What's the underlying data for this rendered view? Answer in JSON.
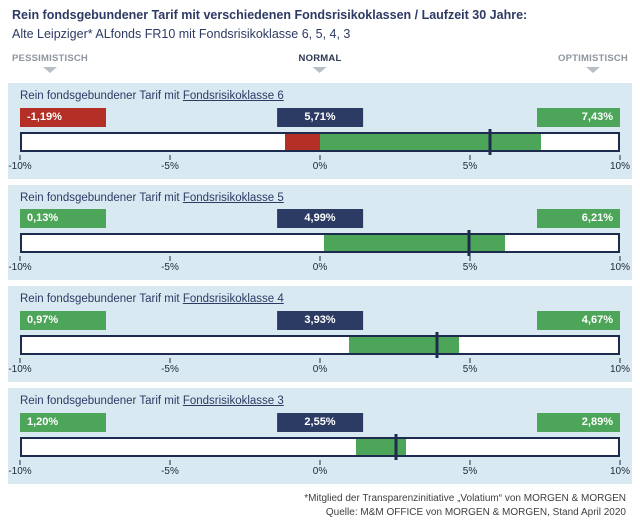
{
  "header": {
    "title": "Rein fondsgebundener Tarif mit verschiedenen Fondsrisikoklassen / Laufzeit 30 Jahre:",
    "subtitle": "Alte Leipziger* ALfonds FR10 mit Fondsrisikoklasse 6, 5, 4, 3"
  },
  "scenario_labels": {
    "pessimistic": "PESSIMISTISCH",
    "normal": "NORMAL",
    "optimistic": "OPTIMISTISCH"
  },
  "axis": {
    "min": -10,
    "max": 10,
    "ticks": [
      {
        "value": -10,
        "label": "-10%"
      },
      {
        "value": -5,
        "label": "-5%"
      },
      {
        "value": 0,
        "label": "0%"
      },
      {
        "value": 5,
        "label": "5%"
      },
      {
        "value": 10,
        "label": "10%"
      }
    ]
  },
  "colors": {
    "red": "#b42f26",
    "green": "#4ca558",
    "navy": "#2b3b64",
    "bar-border": "#1d2c4e",
    "panel-bg": "#d9e9f2",
    "title-navy": "#2d3a64",
    "scen-gray": "#8e959d",
    "scen-dark": "#2b3850",
    "tri-gray": "#b7bec5",
    "tick-color": "#222b38"
  },
  "panels": [
    {
      "title_prefix": "Rein fondsgebundener Tarif mit ",
      "risk_class": "Fondsrisikoklasse 6",
      "pessimistic": {
        "label": "-1,19%",
        "value": -1.19,
        "box_color": "red"
      },
      "normal": {
        "label": "5,71%",
        "value": 5.71,
        "box_color": "navy"
      },
      "optimistic": {
        "label": "7,43%",
        "value": 7.43,
        "box_color": "green"
      },
      "segments": [
        {
          "from": -1.19,
          "to": 0,
          "color": "red"
        },
        {
          "from": 0,
          "to": 7.43,
          "color": "green"
        }
      ]
    },
    {
      "title_prefix": "Rein fondsgebundener Tarif mit ",
      "risk_class": "Fondsrisikoklasse 5",
      "pessimistic": {
        "label": "0,13%",
        "value": 0.13,
        "box_color": "green"
      },
      "normal": {
        "label": "4,99%",
        "value": 4.99,
        "box_color": "navy"
      },
      "optimistic": {
        "label": "6,21%",
        "value": 6.21,
        "box_color": "green"
      },
      "segments": [
        {
          "from": 0.13,
          "to": 6.21,
          "color": "green"
        }
      ]
    },
    {
      "title_prefix": "Rein fondsgebundener Tarif mit ",
      "risk_class": "Fondsrisikoklasse 4",
      "pessimistic": {
        "label": "0,97%",
        "value": 0.97,
        "box_color": "green"
      },
      "normal": {
        "label": "3,93%",
        "value": 3.93,
        "box_color": "navy"
      },
      "optimistic": {
        "label": "4,67%",
        "value": 4.67,
        "box_color": "green"
      },
      "segments": [
        {
          "from": 0.97,
          "to": 4.67,
          "color": "green"
        }
      ]
    },
    {
      "title_prefix": "Rein fondsgebundener Tarif mit ",
      "risk_class": "Fondsrisikoklasse 3",
      "pessimistic": {
        "label": "1,20%",
        "value": 1.2,
        "box_color": "green"
      },
      "normal": {
        "label": "2,55%",
        "value": 2.55,
        "box_color": "navy"
      },
      "optimistic": {
        "label": "2,89%",
        "value": 2.89,
        "box_color": "green"
      },
      "segments": [
        {
          "from": 1.2,
          "to": 2.89,
          "color": "green"
        }
      ]
    }
  ],
  "footer": {
    "line1": "*Mitglied der Transparenzinitiative „Volatium“ von MORGEN & MORGEN",
    "line2": "Quelle: M&M OFFICE von MORGEN & MORGEN, Stand April 2020"
  },
  "chart_data": {
    "type": "bar",
    "subtype": "horizontal-range-bars",
    "title": "Rein fondsgebundener Tarif mit verschiedenen Fondsrisikoklassen / Laufzeit 30 Jahre",
    "subtitle": "Alte Leipziger* ALfonds FR10 mit Fondsrisikoklasse 6, 5, 4, 3",
    "categories": [
      "Fondsrisikoklasse 6",
      "Fondsrisikoklasse 5",
      "Fondsrisikoklasse 4",
      "Fondsrisikoklasse 3"
    ],
    "series": [
      {
        "name": "Pessimistisch",
        "values": [
          -1.19,
          0.13,
          0.97,
          1.2
        ]
      },
      {
        "name": "Normal",
        "values": [
          5.71,
          4.99,
          3.93,
          2.55
        ]
      },
      {
        "name": "Optimistisch",
        "values": [
          7.43,
          6.21,
          4.67,
          2.89
        ]
      }
    ],
    "unit": "%",
    "xlim": [
      -10,
      10
    ],
    "x_ticks": [
      "-10%",
      "-5%",
      "0%",
      "5%",
      "10%"
    ],
    "legend_position": "top",
    "grid": false,
    "notes": "Each row: bar spans pessimistic to optimistic return; vertical marker at normal return; negative portion drawn red, positive portion green."
  }
}
